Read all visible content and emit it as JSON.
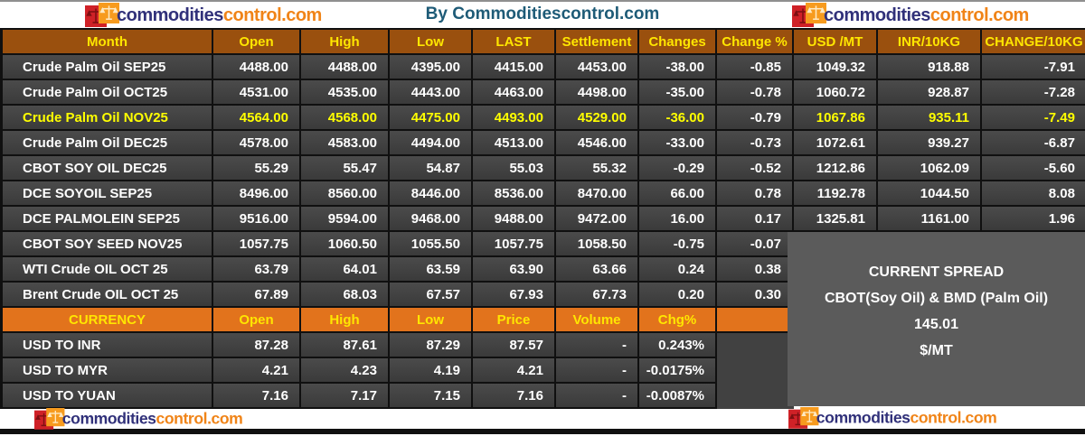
{
  "header": {
    "title": "By Commoditiescontrol.com"
  },
  "brand": {
    "part1": "commodities",
    "part2": "control.com"
  },
  "chart_data": [
    {
      "type": "table",
      "name": "futures_quotes",
      "headers": [
        "Month",
        "Open",
        "High",
        "Low",
        "LAST",
        "Settlement",
        "Changes",
        "Change %",
        "USD /MT",
        "INR/10KG",
        "CHANGE/10KG"
      ],
      "rows": [
        {
          "month": "Crude Palm Oil SEP25",
          "highlight": false,
          "values": [
            "4488.00",
            "4488.00",
            "4395.00",
            "4415.00",
            "4453.00",
            "-38.00",
            "-0.85",
            "1049.32",
            "918.88",
            "-7.91"
          ]
        },
        {
          "month": "Crude Palm Oil OCT25",
          "highlight": false,
          "values": [
            "4531.00",
            "4535.00",
            "4443.00",
            "4463.00",
            "4498.00",
            "-35.00",
            "-0.78",
            "1060.72",
            "928.87",
            "-7.28"
          ]
        },
        {
          "month": "Crude Palm Oil NOV25",
          "highlight": true,
          "values": [
            "4564.00",
            "4568.00",
            "4475.00",
            "4493.00",
            "4529.00",
            "-36.00",
            "-0.79",
            "1067.86",
            "935.11",
            "-7.49"
          ]
        },
        {
          "month": "Crude Palm Oil DEC25",
          "highlight": false,
          "values": [
            "4578.00",
            "4583.00",
            "4494.00",
            "4513.00",
            "4546.00",
            "-33.00",
            "-0.73",
            "1072.61",
            "939.27",
            "-6.87"
          ]
        },
        {
          "month": "CBOT SOY OIL DEC25",
          "highlight": false,
          "values": [
            "55.29",
            "55.47",
            "54.87",
            "55.03",
            "55.32",
            "-0.29",
            "-0.52",
            "1212.86",
            "1062.09",
            "-5.60"
          ]
        },
        {
          "month": "DCE SOYOIL SEP25",
          "highlight": false,
          "values": [
            "8496.00",
            "8560.00",
            "8446.00",
            "8536.00",
            "8470.00",
            "66.00",
            "0.78",
            "1192.78",
            "1044.50",
            "8.08"
          ]
        },
        {
          "month": "DCE PALMOLEIN SEP25",
          "highlight": false,
          "values": [
            "9516.00",
            "9594.00",
            "9468.00",
            "9488.00",
            "9472.00",
            "16.00",
            "0.17",
            "1325.81",
            "1161.00",
            "1.96"
          ]
        },
        {
          "month": "CBOT SOY SEED NOV25",
          "highlight": false,
          "values": [
            "1057.75",
            "1060.50",
            "1055.50",
            "1057.75",
            "1058.50",
            "-0.75",
            "-0.07",
            "",
            "",
            ""
          ]
        },
        {
          "month": "WTI Crude OIL OCT 25",
          "highlight": false,
          "values": [
            "63.79",
            "64.01",
            "63.59",
            "63.90",
            "63.66",
            "0.24",
            "0.38",
            "",
            "",
            ""
          ]
        },
        {
          "month": "Brent Crude OIL OCT 25",
          "highlight": false,
          "values": [
            "67.89",
            "68.03",
            "67.57",
            "67.93",
            "67.73",
            "0.20",
            "0.30",
            "",
            "",
            ""
          ]
        }
      ]
    },
    {
      "type": "table",
      "name": "currency_quotes",
      "headers": [
        "CURRENCY",
        "Open",
        "High",
        "Low",
        "Price",
        "Volume",
        "Chg%"
      ],
      "rows": [
        {
          "name": "USD TO INR",
          "values": [
            "87.28",
            "87.61",
            "87.29",
            "87.57",
            "-",
            "0.243%"
          ]
        },
        {
          "name": "USD TO MYR",
          "values": [
            "4.21",
            "4.23",
            "4.19",
            "4.21",
            "-",
            "-0.0175%"
          ]
        },
        {
          "name": "USD TO YUAN",
          "values": [
            "7.16",
            "7.17",
            "7.15",
            "7.16",
            "-",
            "-0.0087%"
          ]
        }
      ]
    }
  ],
  "spread_box": {
    "line1": "CURRENT SPREAD",
    "line2": "CBOT(Soy Oil) & BMD (Palm Oil)",
    "line3": "145.01",
    "line4": "$/MT"
  },
  "colors": {
    "header_bg": "#9a500e",
    "header_text": "#ffe600",
    "currency_header_bg": "#e2731c",
    "row_text": "#ffffff",
    "highlight_text": "#ffff00",
    "spread_box_bg": "#5b5b5b",
    "title_text": "#1e5b77",
    "logo_blue": "#31317a",
    "logo_orange": "#f08418"
  }
}
